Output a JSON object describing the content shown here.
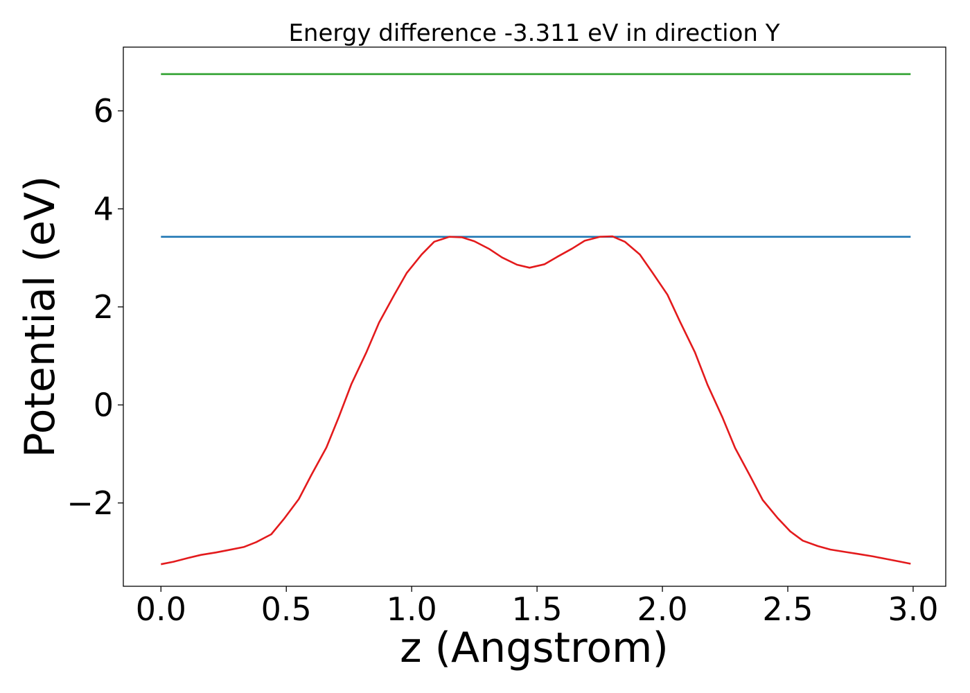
{
  "chart_data": {
    "type": "line",
    "title": "Energy difference -3.311 eV in direction Y",
    "xlabel": "z (Angstrom)",
    "ylabel": "Potential (eV)",
    "xlim": [
      -0.15,
      3.13
    ],
    "ylim": [
      -3.7,
      7.3
    ],
    "xticks": [
      0.0,
      0.5,
      1.0,
      1.5,
      2.0,
      2.5,
      3.0
    ],
    "xtick_labels": [
      "0.0",
      "0.5",
      "1.0",
      "1.5",
      "2.0",
      "2.5",
      "3.0"
    ],
    "yticks": [
      -2,
      0,
      2,
      4,
      6
    ],
    "ytick_labels": [
      "−2",
      "0",
      "2",
      "4",
      "6"
    ],
    "grid": false,
    "series": [
      {
        "color": "#2ca02c",
        "x": [
          0.0,
          2.99
        ],
        "y": [
          6.75,
          6.75
        ]
      },
      {
        "color": "#1f77b4",
        "x": [
          0.0,
          2.99
        ],
        "y": [
          3.43,
          3.43
        ]
      },
      {
        "color": "#e31a1c",
        "x": [
          0.0,
          0.05,
          0.11,
          0.16,
          0.22,
          0.27,
          0.33,
          0.38,
          0.44,
          0.49,
          0.55,
          0.6,
          0.66,
          0.71,
          0.76,
          0.82,
          0.87,
          0.93,
          0.98,
          1.04,
          1.09,
          1.15,
          1.2,
          1.25,
          1.31,
          1.36,
          1.42,
          1.47,
          1.53,
          1.58,
          1.64,
          1.69,
          1.75,
          1.8,
          1.85,
          1.91,
          1.96,
          2.02,
          2.07,
          2.13,
          2.18,
          2.24,
          2.29,
          2.35,
          2.4,
          2.46,
          2.51,
          2.56,
          2.62,
          2.67,
          2.73,
          2.78,
          2.84,
          2.89,
          2.95,
          2.99
        ],
        "y": [
          -3.25,
          -3.2,
          -3.12,
          -3.06,
          -3.01,
          -2.96,
          -2.9,
          -2.8,
          -2.64,
          -2.33,
          -1.92,
          -1.43,
          -0.87,
          -0.24,
          0.43,
          1.08,
          1.68,
          2.24,
          2.69,
          3.07,
          3.33,
          3.43,
          3.42,
          3.34,
          3.18,
          3.01,
          2.86,
          2.8,
          2.87,
          3.02,
          3.19,
          3.35,
          3.43,
          3.44,
          3.33,
          3.07,
          2.7,
          2.25,
          1.7,
          1.07,
          0.41,
          -0.26,
          -0.88,
          -1.45,
          -1.94,
          -2.31,
          -2.58,
          -2.77,
          -2.88,
          -2.95,
          -3.0,
          -3.04,
          -3.09,
          -3.14,
          -3.2,
          -3.24
        ]
      }
    ]
  }
}
